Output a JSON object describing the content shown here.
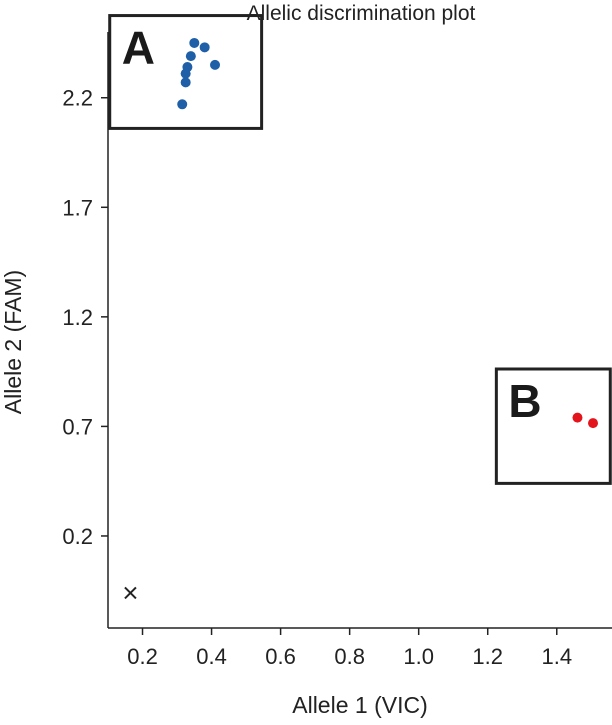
{
  "chart_data": {
    "type": "scatter",
    "title": "Allelic discrimination plot",
    "xlabel": "Allele 1 (VIC)",
    "ylabel": "Allele 2 (FAM)",
    "xlim": [
      0.1,
      1.56
    ],
    "ylim": [
      -0.22,
      2.5
    ],
    "xticks": [
      0.2,
      0.4,
      0.6,
      0.8,
      1.0,
      1.2,
      1.4
    ],
    "xtick_labels": [
      "0.2",
      "0.4",
      "0.6",
      "0.8",
      "1.0",
      "1.2",
      "1.4"
    ],
    "yticks": [
      0.2,
      0.7,
      1.2,
      1.7,
      2.2
    ],
    "ytick_labels": [
      "0.2",
      "0.7",
      "1.2",
      "1.7",
      "2.2"
    ],
    "grid": false,
    "series": [
      {
        "color": "#1f5fa8",
        "marker": "circle",
        "points": [
          {
            "x": 0.35,
            "y": 2.45
          },
          {
            "x": 0.38,
            "y": 2.43
          },
          {
            "x": 0.34,
            "y": 2.39
          },
          {
            "x": 0.41,
            "y": 2.35
          },
          {
            "x": 0.33,
            "y": 2.34
          },
          {
            "x": 0.325,
            "y": 2.31
          },
          {
            "x": 0.325,
            "y": 2.27
          },
          {
            "x": 0.315,
            "y": 2.17
          }
        ]
      },
      {
        "color": "#e3141b",
        "marker": "circle",
        "points": [
          {
            "x": 1.46,
            "y": 0.74
          },
          {
            "x": 1.505,
            "y": 0.715
          }
        ]
      },
      {
        "color": "#222222",
        "marker": "x",
        "points": [
          {
            "x": 0.165,
            "y": -0.06
          }
        ]
      }
    ],
    "annotations": [
      {
        "label": "A",
        "box": {
          "x0": 0.105,
          "x1": 0.545,
          "y0": 2.06,
          "y1": 2.575
        }
      },
      {
        "label": "B",
        "box": {
          "x0": 1.225,
          "x1": 1.555,
          "y0": 0.44,
          "y1": 0.962
        }
      }
    ]
  }
}
